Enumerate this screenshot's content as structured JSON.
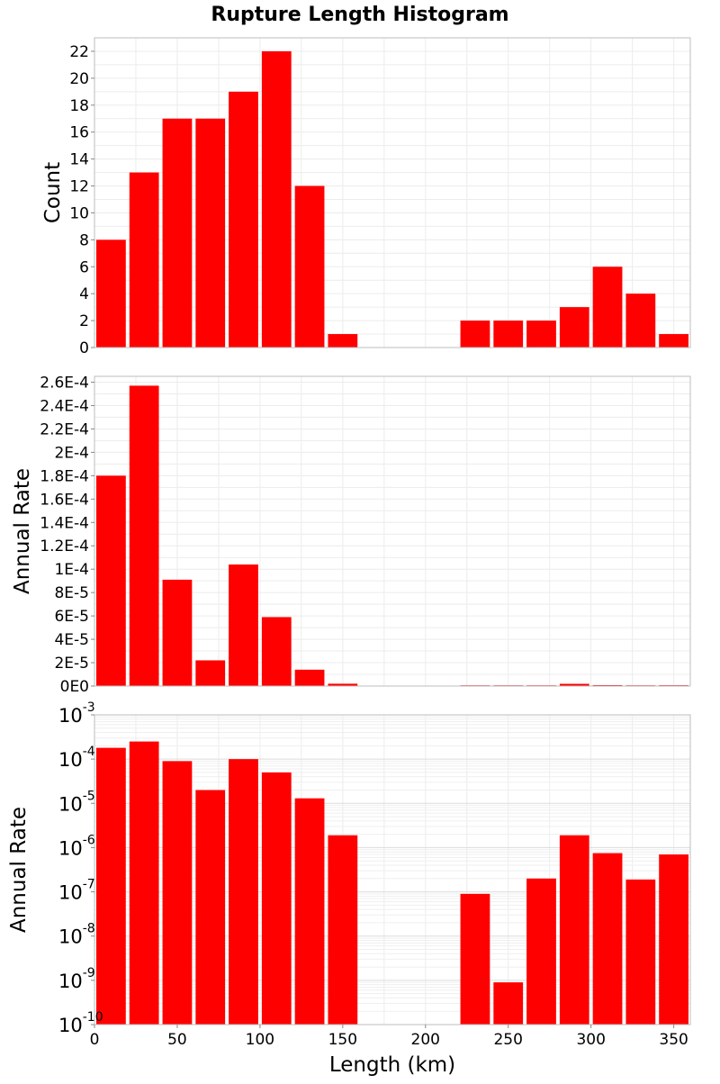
{
  "figure": {
    "title": "Rupture Length Histogram"
  },
  "chart_data": [
    {
      "type": "bar",
      "id": "count",
      "ylabel": "Count",
      "xlim": [
        0,
        360
      ],
      "ylim": [
        0,
        23
      ],
      "yscale": "linear",
      "grid": true,
      "bin_width": 20,
      "x": [
        10,
        30,
        50,
        70,
        90,
        110,
        130,
        150,
        170,
        190,
        210,
        230,
        250,
        270,
        290,
        310,
        330,
        350
      ],
      "values": [
        8,
        13,
        17,
        17,
        19,
        22,
        12,
        1,
        0,
        0,
        0,
        2,
        2,
        2,
        3,
        6,
        4,
        1
      ],
      "yticks": [
        0,
        2,
        4,
        6,
        8,
        10,
        12,
        14,
        16,
        18,
        20,
        22
      ],
      "ytick_labels": [
        "0",
        "2",
        "4",
        "6",
        "8",
        "10",
        "12",
        "14",
        "16",
        "18",
        "20",
        "22"
      ],
      "color": "#ff0000"
    },
    {
      "type": "bar",
      "id": "rate-linear",
      "ylabel": "Annual Rate",
      "xlim": [
        0,
        360
      ],
      "ylim": [
        0,
        0.000265
      ],
      "yscale": "linear",
      "grid": true,
      "bin_width": 20,
      "x": [
        10,
        30,
        50,
        70,
        90,
        110,
        130,
        150,
        170,
        190,
        210,
        230,
        250,
        270,
        290,
        310,
        330,
        350
      ],
      "values": [
        0.00018,
        0.000257,
        9.1e-05,
        2.2e-05,
        0.000104,
        5.9e-05,
        1.4e-05,
        2e-06,
        0,
        0,
        0,
        1e-07,
        1e-09,
        2e-07,
        1.9e-06,
        8e-07,
        2e-07,
        7e-07
      ],
      "yticks": [
        0,
        2e-05,
        4e-05,
        6e-05,
        8e-05,
        0.0001,
        0.00012,
        0.00014,
        0.00016,
        0.00018,
        0.0002,
        0.00022,
        0.00024,
        0.00026
      ],
      "ytick_labels": [
        "0E0",
        "2E-5",
        "4E-5",
        "6E-5",
        "8E-5",
        "1E-4",
        "1.2E-4",
        "1.4E-4",
        "1.6E-4",
        "1.8E-4",
        "2E-4",
        "2.2E-4",
        "2.4E-4",
        "2.6E-4"
      ],
      "color": "#ff0000"
    },
    {
      "type": "bar",
      "id": "rate-log",
      "ylabel": "Annual Rate",
      "xlabel": "Length (km)",
      "xlim": [
        0,
        360
      ],
      "ylim": [
        1e-10,
        0.001
      ],
      "yscale": "log",
      "grid": true,
      "bin_width": 20,
      "x": [
        10,
        30,
        50,
        70,
        90,
        110,
        130,
        150,
        170,
        190,
        210,
        230,
        250,
        270,
        290,
        310,
        330,
        350
      ],
      "values": [
        0.00018,
        0.00025,
        9e-05,
        2e-05,
        0.0001,
        5e-05,
        1.3e-05,
        1.9e-06,
        0,
        0,
        0,
        9e-08,
        9e-10,
        2e-07,
        1.9e-06,
        7.5e-07,
        1.9e-07,
        7e-07
      ],
      "yticks_exp": [
        -10,
        -9,
        -8,
        -7,
        -6,
        -5,
        -4,
        -3
      ],
      "ytick_base": "10",
      "ytick_exps": [
        "-10",
        "-9",
        "-8",
        "-7",
        "-6",
        "-5",
        "-4",
        "-3"
      ],
      "xticks": [
        0,
        50,
        100,
        150,
        200,
        250,
        300,
        350
      ],
      "xtick_labels": [
        "0",
        "50",
        "100",
        "150",
        "200",
        "250",
        "300",
        "350"
      ],
      "color": "#ff0000"
    }
  ]
}
